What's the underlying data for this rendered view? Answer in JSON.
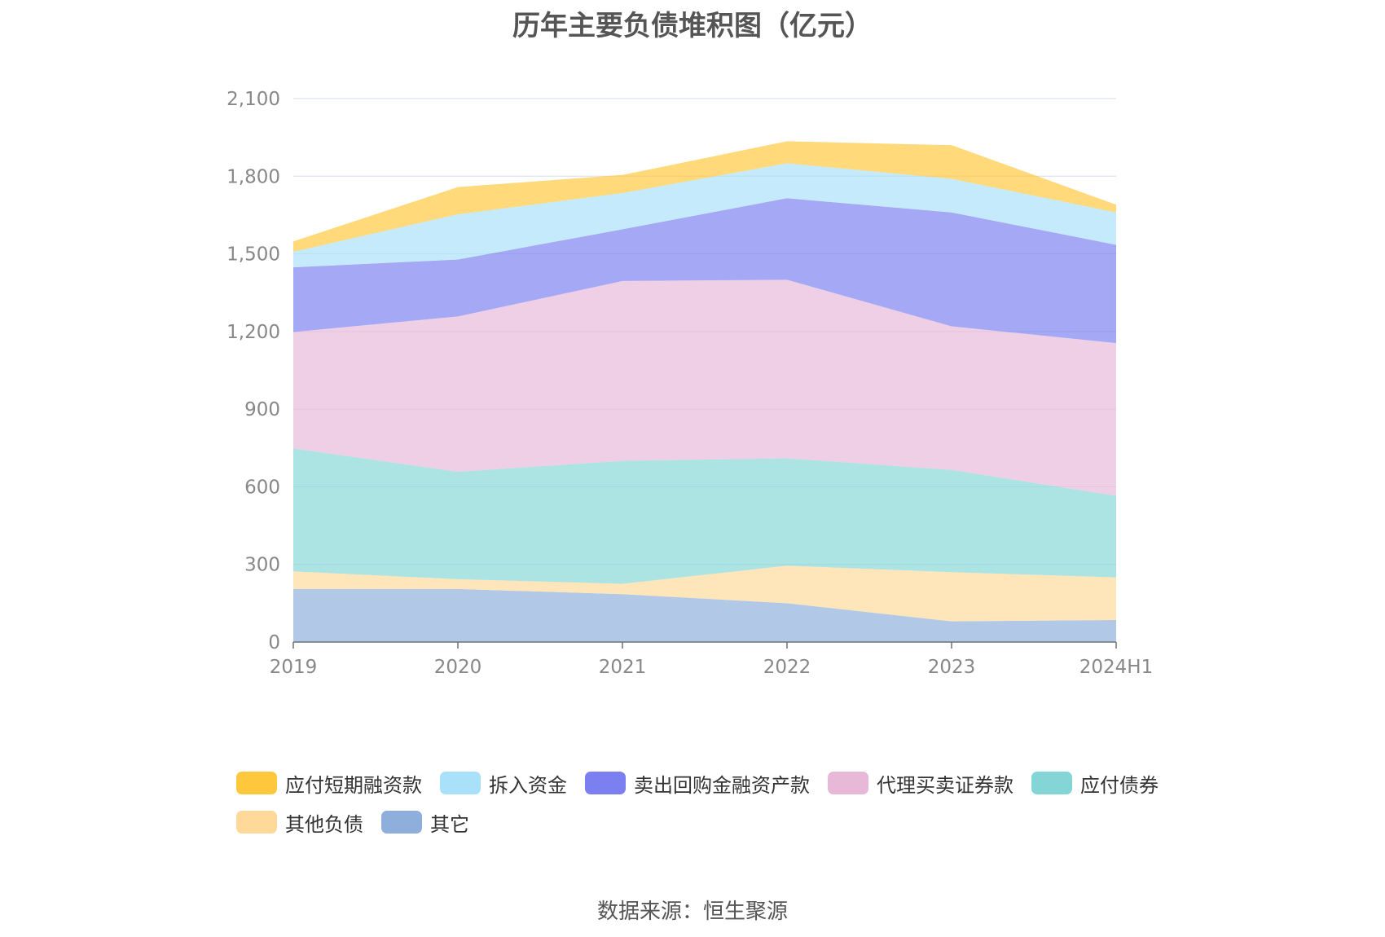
{
  "chart_data": {
    "type": "area",
    "stacked": true,
    "title": "历年主要负债堆积图（亿元）",
    "source": "数据来源：恒生聚源",
    "categories": [
      "2019",
      "2020",
      "2021",
      "2022",
      "2023",
      "2024H1"
    ],
    "ylim": [
      0,
      2100
    ],
    "yticks": [
      0,
      300,
      600,
      900,
      1200,
      1500,
      1800,
      2100
    ],
    "ytick_labels": [
      "0",
      "300",
      "600",
      "900",
      "1,200",
      "1,500",
      "1,800",
      "2,100"
    ],
    "grid": true,
    "legend_position": "bottom",
    "series": [
      {
        "name": "其它",
        "color": "#8eaedb",
        "values": [
          205,
          205,
          185,
          150,
          80,
          85
        ]
      },
      {
        "name": "其他负债",
        "color": "#ffd99a",
        "values": [
          68,
          38,
          40,
          145,
          190,
          165
        ]
      },
      {
        "name": "应付债券",
        "color": "#84d6d6",
        "values": [
          475,
          415,
          475,
          415,
          395,
          315
        ]
      },
      {
        "name": "代理买卖证券款",
        "color": "#e8b8d8",
        "values": [
          450,
          600,
          695,
          690,
          555,
          590
        ]
      },
      {
        "name": "卖出回购金融资产款",
        "color": "#7b7ff0",
        "values": [
          250,
          220,
          200,
          315,
          440,
          380
        ]
      },
      {
        "name": "拆入资金",
        "color": "#a9e0fa",
        "values": [
          60,
          175,
          140,
          135,
          130,
          125
        ]
      },
      {
        "name": "应付短期融资款",
        "color": "#ffc73b",
        "values": [
          40,
          105,
          70,
          85,
          130,
          30
        ]
      }
    ]
  },
  "legend_order": [
    6,
    5,
    4,
    3,
    2,
    1,
    0
  ]
}
